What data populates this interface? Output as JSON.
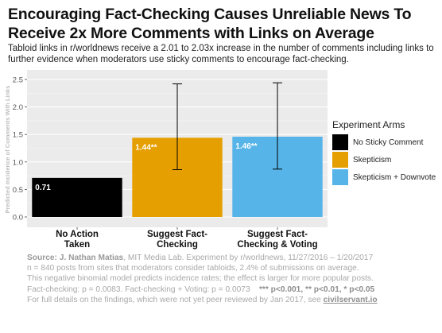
{
  "title": "Encouraging Fact-Checking Causes Unreliable News To Receive 2x More Comments with Links on Average",
  "subtitle": "Tabloid links in r/worldnews receive a 2.01 to 2.03x increase in the number of comments including links to further evidence when moderators use sticky comments to encourage fact-checking.",
  "chart_data": {
    "type": "bar",
    "title": "Encouraging Fact-Checking Causes Unreliable News To Receive 2x More Comments with Links on Average",
    "ylabel": "Predicted Incidence of Comments With Links",
    "xlabel": "",
    "ylim": [
      0,
      2.5
    ],
    "yticks": [
      "0.0",
      "0.5",
      "1.0",
      "1.5",
      "2.0",
      "2.5"
    ],
    "categories": [
      "No Action Taken",
      "Suggest Fact-Checking",
      "Suggest Fact-Checking & Voting"
    ],
    "category_lines": [
      [
        "No Action",
        "Taken"
      ],
      [
        "Suggest Fact-",
        "Checking"
      ],
      [
        "Suggest Fact-",
        "Checking & Voting"
      ]
    ],
    "values": [
      0.71,
      1.44,
      1.46
    ],
    "value_labels": [
      "0.71",
      "1.44**",
      "1.46**"
    ],
    "error_low": [
      null,
      0.86,
      0.87
    ],
    "error_high": [
      null,
      2.42,
      2.44
    ],
    "colors": [
      "#000000",
      "#e69f00",
      "#56b4e9"
    ],
    "grid": true,
    "legend": {
      "title": "Experiment Arms",
      "placement": "right",
      "entries": [
        "No Sticky Comment",
        "Skepticism",
        "Skepticism + Downvote"
      ]
    }
  },
  "source": {
    "label": "Source:",
    "author": "J. Nathan Matias",
    "line1_rest": ", MIT Media Lab. Experiment by r/worldnews, 11/27/2016 – 1/20/2017",
    "line2": "n = 840 posts from sites that moderators consider tabloids, 2.4% of submissions on average.",
    "line3": "This negative binomial model predicts incidence rates; the effect is larger for more popular posts.",
    "line4_text": "Fact-checking: p = 0.0083. Fact-checking + Voting: p = 0.0073",
    "line4_sig": "*** p<0.001, ** p<0.01, * p<0.05",
    "line5_text": "For full details on the findings, which were not yet peer reviewed by Jan 2017, see ",
    "line5_link": "civilservant.io"
  }
}
